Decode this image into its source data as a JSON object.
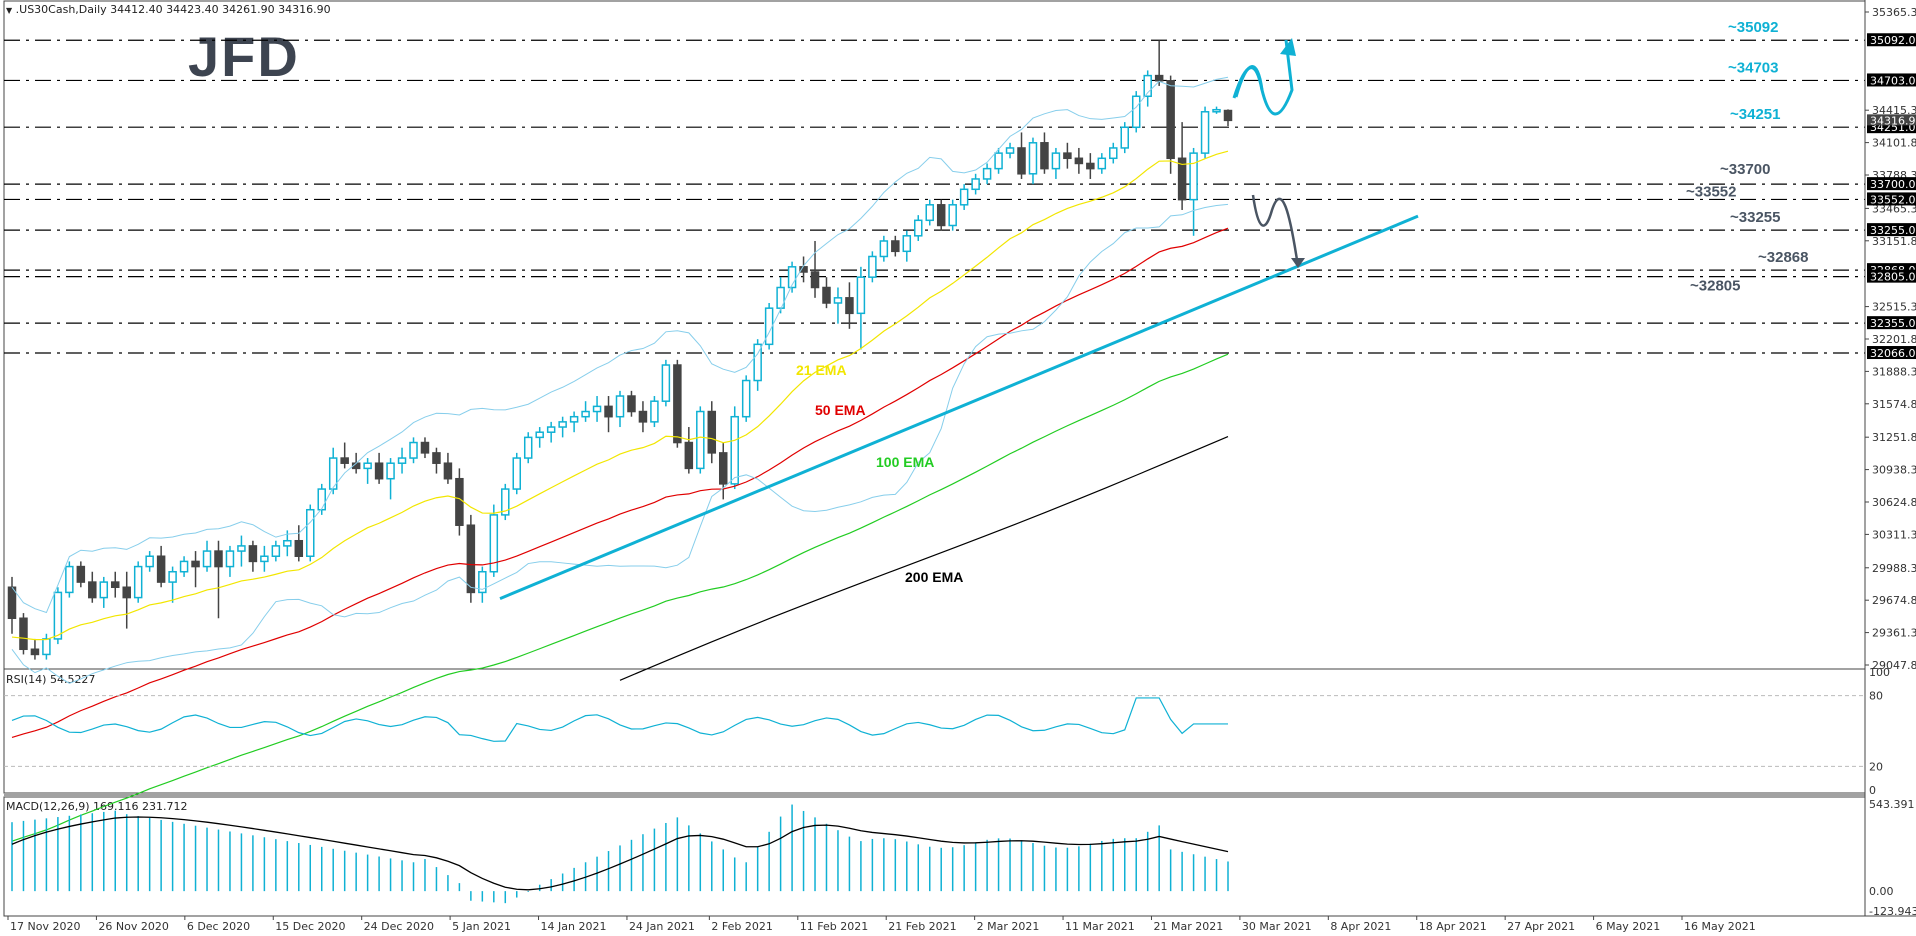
{
  "header": {
    "symbol_line": ".US30Cash,Daily  34412.40 34423.40 34261.90 34316.90",
    "logo": "JFD"
  },
  "indicators": {
    "rsi_label": "RSI(14) 54.5227",
    "macd_label": "MACD(12,26,9) 169.116 231.712"
  },
  "colors": {
    "bull": "#0fb1d4",
    "bear": "#444444",
    "ema21": "#f2e600",
    "ema50": "#e00000",
    "ema100": "#22cc22",
    "ema200": "#000000",
    "bollinger": "#87ceeb",
    "trendline": "#0fb1d4",
    "arrow_up": "#0fb1d4",
    "arrow_down": "#4a5563",
    "level_up_text": "#0fb1d4",
    "level_down_text": "#4a5563"
  },
  "chart_data": [
    {
      "type": "candlestick",
      "title": ".US30Cash,Daily",
      "ohlc_last": {
        "open": 34412.4,
        "high": 34423.4,
        "low": 34261.9,
        "close": 34316.9
      },
      "x_ticks": [
        "17 Nov 2020",
        "26 Nov 2020",
        "6 Dec 2020",
        "15 Dec 2020",
        "24 Dec 2020",
        "5 Jan 2021",
        "14 Jan 2021",
        "24 Jan 2021",
        "2 Feb 2021",
        "11 Feb 2021",
        "21 Feb 2021",
        "2 Mar 2021",
        "11 Mar 2021",
        "21 Mar 2021",
        "30 Mar 2021",
        "8 Apr 2021",
        "18 Apr 2021",
        "27 Apr 2021",
        "6 May 2021",
        "16 May 2021"
      ],
      "y_ticks": [
        35365.3,
        34415.3,
        34101.8,
        33788.3,
        33465.3,
        33151.8,
        32515.3,
        32201.8,
        31888.3,
        31574.8,
        31251.8,
        30938.3,
        30624.8,
        30311.3,
        29988.3,
        29674.8,
        29361.3,
        29047.8
      ],
      "ylim": [
        29047.8,
        35365.3
      ],
      "horizontal_levels": [
        {
          "label": "~35092",
          "value": 35092.0,
          "side": "resistance"
        },
        {
          "label": "~34703",
          "value": 34703.0,
          "side": "resistance"
        },
        {
          "label": "~34251",
          "value": 34251.0,
          "side": "resistance"
        },
        {
          "label": "~33700",
          "value": 33700.0,
          "side": "support"
        },
        {
          "label": "~33552",
          "value": 33552.0,
          "side": "support"
        },
        {
          "label": "~33255",
          "value": 33255.0,
          "side": "support"
        },
        {
          "label": "~32868",
          "value": 32868.0,
          "side": "support"
        },
        {
          "label": "~32805",
          "value": 32805.0,
          "side": "support"
        },
        {
          "label": "",
          "value": 32355.0,
          "side": "support"
        },
        {
          "label": "",
          "value": 32066.0,
          "side": "support"
        }
      ],
      "current_price_tag": 34316.9,
      "ema_labels": [
        "21 EMA",
        "50 EMA",
        "100 EMA",
        "200 EMA"
      ],
      "candles": [
        [
          29800,
          29900,
          29350,
          29500
        ],
        [
          29500,
          29550,
          29150,
          29200
        ],
        [
          29200,
          29300,
          29100,
          29150
        ],
        [
          29150,
          29350,
          29100,
          29300
        ],
        [
          29300,
          29800,
          29250,
          29750
        ],
        [
          29750,
          30050,
          29700,
          30000
        ],
        [
          30000,
          30050,
          29800,
          29850
        ],
        [
          29850,
          29950,
          29650,
          29700
        ],
        [
          29700,
          29900,
          29600,
          29850
        ],
        [
          29850,
          29950,
          29700,
          29800
        ],
        [
          29800,
          29950,
          29400,
          29700
        ],
        [
          29700,
          30050,
          29650,
          30000
        ],
        [
          30000,
          30150,
          29950,
          30100
        ],
        [
          30100,
          30200,
          29800,
          29850
        ],
        [
          29850,
          30000,
          29650,
          29950
        ],
        [
          29950,
          30100,
          29900,
          30050
        ],
        [
          30050,
          30150,
          29800,
          30000
        ],
        [
          30000,
          30250,
          29950,
          30150
        ],
        [
          30150,
          30250,
          29500,
          30000
        ],
        [
          30000,
          30200,
          29900,
          30150
        ],
        [
          30150,
          30300,
          30000,
          30200
        ],
        [
          30200,
          30250,
          29950,
          30050
        ],
        [
          30050,
          30200,
          29950,
          30100
        ],
        [
          30100,
          30250,
          30050,
          30200
        ],
        [
          30200,
          30350,
          30100,
          30250
        ],
        [
          30250,
          30400,
          30050,
          30100
        ],
        [
          30100,
          30600,
          30050,
          30550
        ],
        [
          30550,
          30800,
          30500,
          30750
        ],
        [
          30750,
          31150,
          30700,
          31050
        ],
        [
          31050,
          31200,
          30950,
          31000
        ],
        [
          31000,
          31100,
          30900,
          30950
        ],
        [
          30950,
          31050,
          30800,
          31000
        ],
        [
          31000,
          31100,
          30800,
          30850
        ],
        [
          30850,
          31050,
          30650,
          31000
        ],
        [
          31000,
          31150,
          30900,
          31050
        ],
        [
          31050,
          31250,
          31000,
          31200
        ],
        [
          31200,
          31250,
          31050,
          31100
        ],
        [
          31100,
          31150,
          30900,
          31000
        ],
        [
          31000,
          31100,
          30800,
          30850
        ],
        [
          30850,
          30950,
          30300,
          30400
        ],
        [
          30400,
          30500,
          29650,
          29750
        ],
        [
          29750,
          30000,
          29650,
          29950
        ],
        [
          29950,
          30600,
          29900,
          30500
        ],
        [
          30500,
          30800,
          30450,
          30750
        ],
        [
          30750,
          31100,
          30700,
          31050
        ],
        [
          31050,
          31300,
          31000,
          31250
        ],
        [
          31250,
          31350,
          31150,
          31300
        ],
        [
          31300,
          31400,
          31200,
          31350
        ],
        [
          31350,
          31450,
          31250,
          31400
        ],
        [
          31400,
          31500,
          31300,
          31450
        ],
        [
          31450,
          31600,
          31400,
          31500
        ],
        [
          31500,
          31650,
          31400,
          31550
        ],
        [
          31550,
          31650,
          31300,
          31450
        ],
        [
          31450,
          31700,
          31350,
          31650
        ],
        [
          31650,
          31700,
          31450,
          31500
        ],
        [
          31500,
          31600,
          31300,
          31400
        ],
        [
          31400,
          31650,
          31350,
          31600
        ],
        [
          31600,
          32000,
          31550,
          31950
        ],
        [
          31950,
          32000,
          31150,
          31200
        ],
        [
          31200,
          31350,
          30900,
          30950
        ],
        [
          30950,
          31550,
          30900,
          31500
        ],
        [
          31500,
          31600,
          31000,
          31100
        ],
        [
          31100,
          31200,
          30650,
          30800
        ],
        [
          30800,
          31550,
          30750,
          31450
        ],
        [
          31450,
          31850,
          31400,
          31800
        ],
        [
          31800,
          32200,
          31700,
          32150
        ],
        [
          32150,
          32550,
          32100,
          32500
        ],
        [
          32500,
          32800,
          32450,
          32700
        ],
        [
          32700,
          32950,
          32650,
          32900
        ],
        [
          32900,
          33000,
          32750,
          32850
        ],
        [
          32850,
          33150,
          32600,
          32700
        ],
        [
          32700,
          32800,
          32500,
          32550
        ],
        [
          32550,
          32700,
          32350,
          32600
        ],
        [
          32600,
          32750,
          32300,
          32450
        ],
        [
          32450,
          32900,
          32100,
          32800
        ],
        [
          32800,
          33050,
          32750,
          33000
        ],
        [
          33000,
          33200,
          32950,
          33150
        ],
        [
          33150,
          33200,
          33000,
          33050
        ],
        [
          33050,
          33250,
          32950,
          33200
        ],
        [
          33200,
          33400,
          33150,
          33350
        ],
        [
          33350,
          33550,
          33300,
          33500
        ],
        [
          33500,
          33550,
          33250,
          33300
        ],
        [
          33300,
          33550,
          33250,
          33500
        ],
        [
          33500,
          33700,
          33450,
          33650
        ],
        [
          33650,
          33800,
          33600,
          33750
        ],
        [
          33750,
          33900,
          33700,
          33850
        ],
        [
          33850,
          34050,
          33800,
          34000
        ],
        [
          34000,
          34100,
          33950,
          34050
        ],
        [
          34050,
          34200,
          33750,
          33800
        ],
        [
          33800,
          34150,
          33700,
          34100
        ],
        [
          34100,
          34200,
          33800,
          33850
        ],
        [
          33850,
          34050,
          33750,
          34000
        ],
        [
          34000,
          34100,
          33850,
          33950
        ],
        [
          33950,
          34050,
          33800,
          33900
        ],
        [
          33900,
          34000,
          33750,
          33850
        ],
        [
          33850,
          34000,
          33800,
          33950
        ],
        [
          33950,
          34100,
          33900,
          34050
        ],
        [
          34050,
          34300,
          34000,
          34250
        ],
        [
          34250,
          34600,
          34200,
          34550
        ],
        [
          34550,
          34800,
          34450,
          34750
        ],
        [
          34750,
          35092,
          34650,
          34700
        ],
        [
          34700,
          34750,
          33800,
          33950
        ],
        [
          33950,
          34300,
          33450,
          33550
        ],
        [
          33550,
          34050,
          33200,
          34000
        ],
        [
          34000,
          34450,
          33950,
          34400
        ],
        [
          34400,
          34450,
          34380,
          34420
        ],
        [
          34412,
          34423,
          34262,
          34317
        ]
      ],
      "series_overlays": {
        "ema21": "yellow",
        "ema50": "red",
        "ema100": "green",
        "ema200": "black",
        "bollinger_bands": "light blue"
      }
    },
    {
      "type": "line",
      "title": "RSI(14)",
      "value": 54.5227,
      "ylim": [
        0,
        100
      ],
      "y_ticks": [
        100,
        80,
        20,
        0
      ],
      "levels": [
        80,
        20
      ]
    },
    {
      "type": "bar",
      "title": "MACD(12,26,9)",
      "main": 169.116,
      "signal": 231.712,
      "ylim": [
        -123.943,
        543.391
      ],
      "y_ticks": [
        543.391,
        0.0,
        -123.943
      ]
    }
  ]
}
